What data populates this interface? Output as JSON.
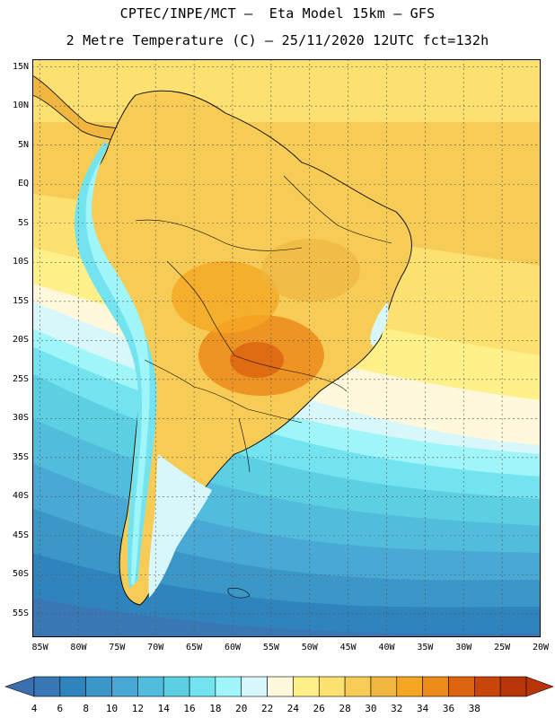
{
  "header": {
    "line1": "CPTEC/INPE/MCT –  Eta Model 15km – GFS",
    "line2": "2 Metre Temperature (C) – 25/11/2020 12UTC fct=132h"
  },
  "map": {
    "lat_labels": [
      "15N",
      "10N",
      "5N",
      "EQ",
      "5S",
      "10S",
      "15S",
      "20S",
      "25S",
      "30S",
      "35S",
      "40S",
      "45S",
      "50S",
      "55S"
    ],
    "lat_values": [
      15,
      10,
      5,
      0,
      -5,
      -10,
      -15,
      -20,
      -25,
      -30,
      -35,
      -40,
      -45,
      -50,
      -55
    ],
    "lon_labels": [
      "85W",
      "80W",
      "75W",
      "70W",
      "65W",
      "60W",
      "55W",
      "50W",
      "45W",
      "40W",
      "35W",
      "30W",
      "25W",
      "20W"
    ],
    "lon_values": [
      -85,
      -80,
      -75,
      -70,
      -65,
      -60,
      -55,
      -50,
      -45,
      -40,
      -35,
      -30,
      -25,
      -20
    ],
    "lon_range": [
      -86,
      -20
    ],
    "lat_range": [
      -58,
      16
    ],
    "grid": "dotted"
  },
  "colorbar": {
    "labels": [
      "4",
      "6",
      "8",
      "10",
      "12",
      "14",
      "16",
      "18",
      "20",
      "22",
      "24",
      "26",
      "28",
      "30",
      "32",
      "34",
      "36",
      "38"
    ],
    "colors": [
      "#3a78b5",
      "#2f84bd",
      "#3b97c8",
      "#4aa9d4",
      "#52bcdc",
      "#5dcfe2",
      "#72e3ef",
      "#9ff5f7",
      "#d8f7fb",
      "#fff8dc",
      "#fff08a",
      "#fce070",
      "#f7cc56",
      "#f0b640",
      "#f5a623",
      "#ec8a1a",
      "#dc6410",
      "#c8460c",
      "#b8350a"
    ],
    "min_color": "#3a70b0",
    "max_color": "#b8350a"
  }
}
